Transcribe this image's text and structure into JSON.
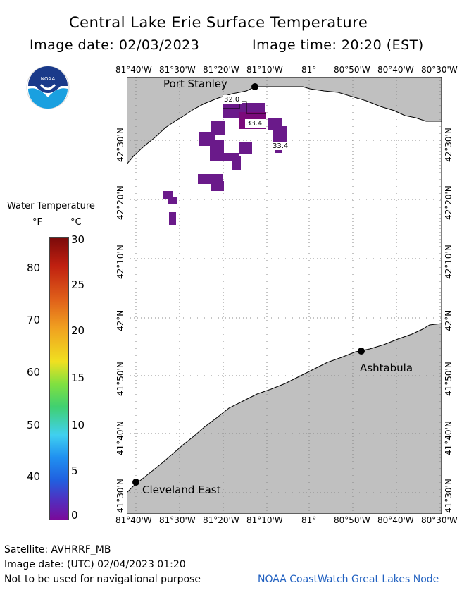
{
  "title": "Central Lake Erie Surface Temperature",
  "image_date_label": "Image date: 02/03/2023",
  "image_time_label": "Image time: 20:20 (EST)",
  "x_ticks": [
    "81°40'W",
    "81°30'W",
    "81°20'W",
    "81°10'W",
    "81°",
    "80°50'W",
    "80°40'W",
    "80°30'W"
  ],
  "y_ticks": [
    "42°30'N",
    "42°20'N",
    "42°10'N",
    "42°N",
    "41°50'N",
    "41°40'N",
    "41°30'N"
  ],
  "places": {
    "port_stanley": "Port Stanley",
    "ashtabula": "Ashtabula",
    "cleveland_east": "Cleveland East"
  },
  "temp_labels": [
    "32.0",
    "33.4",
    "33.4"
  ],
  "legend": {
    "title": "Water Temperature",
    "unit_f": "°F",
    "unit_c": "°C",
    "f_ticks": [
      "80",
      "70",
      "60",
      "50",
      "40"
    ],
    "c_ticks": [
      "30",
      "25",
      "20",
      "15",
      "10",
      "5",
      "0"
    ],
    "colors": [
      "#7a0a0a",
      "#e0601a",
      "#f0e020",
      "#40d040",
      "#40d0f0",
      "#2060e0",
      "#6a0a9a"
    ]
  },
  "footer": {
    "satellite": "Satellite: AVHRRF_MB",
    "utc_date": "Image date: (UTC) 02/04/2023  01:20",
    "disclaimer": "Not to be used for navigational purpose",
    "credit": "NOAA CoastWatch Great Lakes Node"
  },
  "colors": {
    "land": "#c0c0c0",
    "water": "#ffffff",
    "ice_cold": "#6a1a8a",
    "cold_dark": "#7a0a7a"
  }
}
